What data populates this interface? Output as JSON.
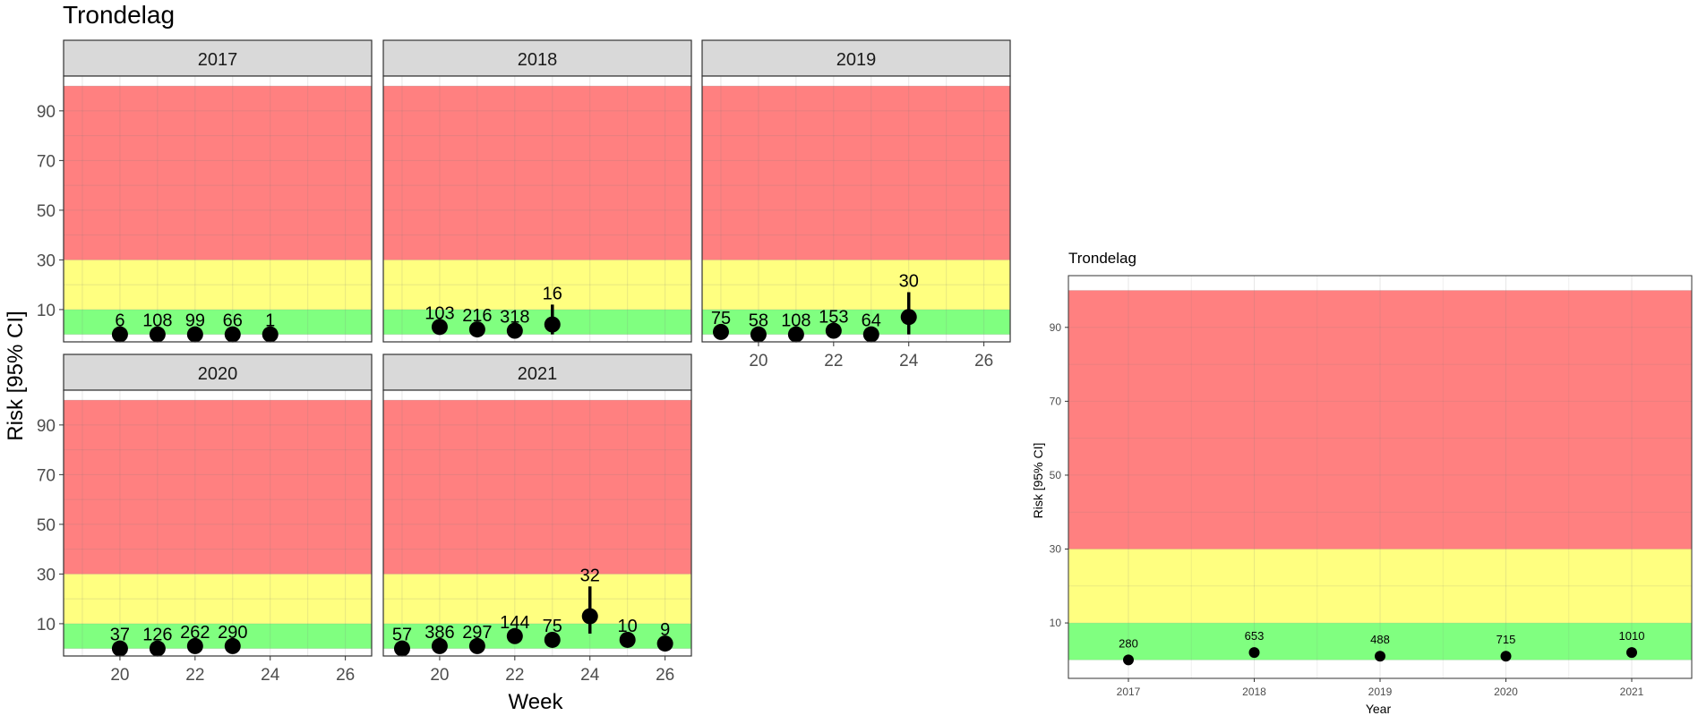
{
  "chart_data": [
    {
      "type": "scatter",
      "title": "Trondelag",
      "xlabel": "Week",
      "ylabel": "Risk [95% CI]",
      "xlim": [
        18.5,
        26.7
      ],
      "ylim": [
        -3,
        104
      ],
      "x_ticks": [
        20,
        22,
        24,
        26
      ],
      "y_ticks": [
        10,
        30,
        50,
        70,
        90
      ],
      "zones": [
        {
          "name": "green",
          "from": 0,
          "to": 10,
          "color": "#80FF80"
        },
        {
          "name": "yellow",
          "from": 10,
          "to": 30,
          "color": "#FFFF80"
        },
        {
          "name": "red",
          "from": 30,
          "to": 100,
          "color": "#FF8080"
        }
      ],
      "panels": [
        {
          "year": "2017",
          "points": [
            {
              "week": 20,
              "risk": 0,
              "n": "6"
            },
            {
              "week": 21,
              "risk": 0,
              "n": "108"
            },
            {
              "week": 22,
              "risk": 0,
              "n": "99"
            },
            {
              "week": 23,
              "risk": 0,
              "n": "66"
            },
            {
              "week": 24,
              "risk": 0,
              "n": "1"
            }
          ]
        },
        {
          "year": "2018",
          "points": [
            {
              "week": 20,
              "risk": 3,
              "n": "103"
            },
            {
              "week": 21,
              "risk": 2,
              "n": "216"
            },
            {
              "week": 22,
              "risk": 1.5,
              "n": "318"
            },
            {
              "week": 23,
              "risk": 4,
              "n": "16",
              "lo": 0,
              "hi": 12
            }
          ]
        },
        {
          "year": "2019",
          "points": [
            {
              "week": 19,
              "risk": 1,
              "n": "75"
            },
            {
              "week": 20,
              "risk": 0,
              "n": "58"
            },
            {
              "week": 21,
              "risk": 0,
              "n": "108"
            },
            {
              "week": 22,
              "risk": 1.5,
              "n": "153"
            },
            {
              "week": 23,
              "risk": 0,
              "n": "64"
            },
            {
              "week": 24,
              "risk": 7,
              "n": "30",
              "lo": 0,
              "hi": 17
            }
          ]
        },
        {
          "year": "2020",
          "points": [
            {
              "week": 20,
              "risk": 0,
              "n": "37"
            },
            {
              "week": 21,
              "risk": 0,
              "n": "126"
            },
            {
              "week": 22,
              "risk": 1,
              "n": "262"
            },
            {
              "week": 23,
              "risk": 1,
              "n": "290"
            }
          ]
        },
        {
          "year": "2021",
          "points": [
            {
              "week": 19,
              "risk": 0,
              "n": "57"
            },
            {
              "week": 20,
              "risk": 1,
              "n": "386"
            },
            {
              "week": 21,
              "risk": 1,
              "n": "297"
            },
            {
              "week": 22,
              "risk": 5,
              "n": "144"
            },
            {
              "week": 23,
              "risk": 3.5,
              "n": "75"
            },
            {
              "week": 24,
              "risk": 13,
              "n": "32",
              "lo": 6,
              "hi": 25
            },
            {
              "week": 25,
              "risk": 3.5,
              "n": "10"
            },
            {
              "week": 26,
              "risk": 2,
              "n": "9"
            }
          ]
        }
      ]
    },
    {
      "type": "scatter",
      "title": "Trondelag",
      "xlabel": "Year",
      "ylabel": "Risk [95% CI]",
      "ylim": [
        -5,
        104
      ],
      "y_ticks": [
        10,
        30,
        50,
        70,
        90
      ],
      "categories": [
        "2017",
        "2018",
        "2019",
        "2020",
        "2021"
      ],
      "values": [
        0,
        2,
        1,
        1,
        2
      ],
      "n_labels": [
        "280",
        "653",
        "488",
        "715",
        "1010"
      ]
    }
  ]
}
